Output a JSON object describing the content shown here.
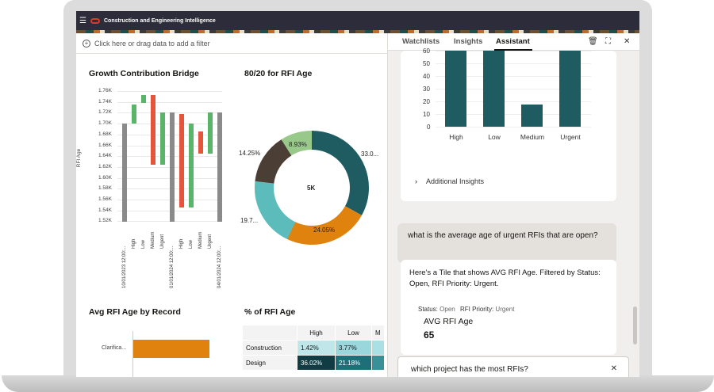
{
  "app": {
    "title": "Construction and Engineering Intelligence"
  },
  "filter_bar": {
    "placeholder": "Click here or drag data to add a filter"
  },
  "panels": {
    "growth_title": "Growth Contribution Bridge",
    "rfi80_title": "80/20 for RFI Age",
    "avg_record_title": "Avg RFI Age by Record",
    "pct_title": "% of RFI Age"
  },
  "growth_chart": {
    "y_label": "RFI Age",
    "y_ticks": [
      "1.76K",
      "1.74K",
      "1.72K",
      "1.70K",
      "1.68K",
      "1.66K",
      "1.64K",
      "1.62K",
      "1.60K",
      "1.58K",
      "1.56K",
      "1.54K",
      "1.52K"
    ],
    "x_ticks": [
      "10/01/2023 12:00:...",
      "High",
      "Low",
      "Medium",
      "Urgent",
      "01/01/2024 12:00:...",
      "High",
      "Low",
      "Medium",
      "Urgent",
      "04/01/2024 12:00:..."
    ]
  },
  "donut": {
    "center_label": "5K",
    "slice_labels": [
      "33.0...",
      "24.05%",
      "19.7...",
      "14.25%",
      "8.93%"
    ]
  },
  "avg_record": {
    "row_label": "Clarifica..."
  },
  "pct_table": {
    "headers": [
      "High",
      "Low",
      "M"
    ],
    "rows": [
      {
        "label": "Construction",
        "values": [
          "1.42%",
          "3.77%",
          ""
        ]
      },
      {
        "label": "Design",
        "values": [
          "36.02%",
          "21.18%",
          ""
        ]
      }
    ]
  },
  "assistant": {
    "tabs": [
      "Watchlists",
      "Insights",
      "Assistant"
    ],
    "active_tab": "Assistant",
    "mini_chart": {
      "y_ticks": [
        "60",
        "50",
        "40",
        "30",
        "20",
        "10",
        "0"
      ],
      "categories": [
        "High",
        "Low",
        "Medium",
        "Urgent"
      ]
    },
    "additional_insights": "Additional Insights",
    "user_question": "what is the average age of urgent RFIs that are open?",
    "reply_text": "Here's a Tile that shows AVG RFI Age. Filtered by Status: Open, RFI Priority: Urgent.",
    "filter_status_label": "Status:",
    "filter_status_value": "Open",
    "filter_priority_label": "RFI Priority:",
    "filter_priority_value": "Urgent",
    "tile_title": "AVG RFI Age",
    "tile_value": "65",
    "input_value": "which project has the most RFIs?"
  },
  "colors": {
    "teal": "#1f5c62",
    "orange": "#e0820e",
    "light_teal": "#5cbcbc",
    "dark_brown": "#4b3e34",
    "light_green": "#99c98a",
    "waterfall_up": "#5ab469",
    "waterfall_down": "#e4553b",
    "waterfall_total": "#8a8a8a"
  }
}
